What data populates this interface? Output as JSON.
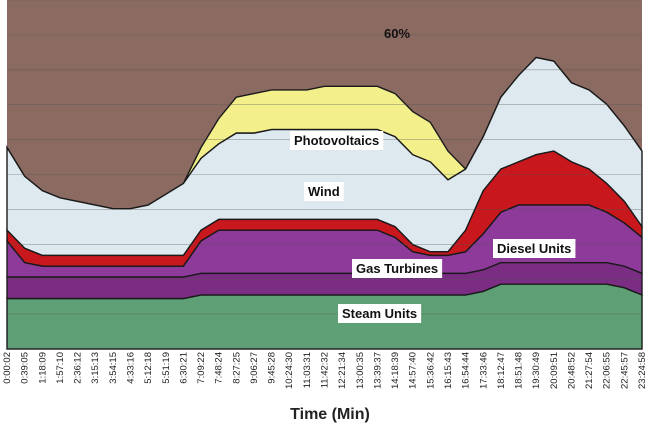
{
  "chart_data": {
    "type": "area",
    "title": "",
    "xlabel": "Time (Min)",
    "ylabel": "",
    "categories": [
      "0:00:02",
      "0:39:05",
      "1:18:09",
      "1:57:10",
      "2:36:12",
      "3:15:13",
      "3:54:15",
      "4:33:16",
      "5:12:18",
      "5:51:19",
      "6:30:21",
      "7:09:22",
      "7:48:24",
      "8:27:25",
      "9:06:27",
      "9:45:28",
      "10:24:30",
      "11:03:31",
      "11:42:32",
      "12:21:34",
      "13:00:35",
      "13:39:37",
      "14:18:39",
      "14:57:40",
      "15:36:42",
      "16:15:43",
      "16:54:44",
      "17:33:46",
      "18:12:47",
      "18:51:48",
      "19:30:49",
      "20:09:51",
      "20:48:52",
      "21:27:54",
      "22:06:55",
      "22:45:57",
      "23:24:58"
    ],
    "series": [
      {
        "name": "Steam Units",
        "color": "#5f9f76",
        "values": [
          14,
          14,
          14,
          14,
          14,
          14,
          14,
          14,
          14,
          14,
          14,
          15,
          15,
          15,
          15,
          15,
          15,
          15,
          15,
          15,
          15,
          15,
          15,
          15,
          15,
          15,
          15,
          16,
          18,
          18,
          18,
          18,
          18,
          18,
          18,
          17,
          15
        ]
      },
      {
        "name": "",
        "color": "#7a2d83",
        "values": [
          6,
          6,
          6,
          6,
          6,
          6,
          6,
          6,
          6,
          6,
          6,
          6,
          6,
          6,
          6,
          6,
          6,
          6,
          6,
          6,
          6,
          6,
          6,
          6,
          6,
          6,
          6,
          6,
          6,
          6,
          6,
          6,
          6,
          6,
          6,
          6,
          6
        ]
      },
      {
        "name": "",
        "color": "#8e3a9a",
        "values": [
          10,
          4,
          3,
          3,
          3,
          3,
          3,
          3,
          3,
          3,
          3,
          9,
          12,
          12,
          12,
          12,
          12,
          12,
          12,
          12,
          12,
          12,
          10,
          6,
          5,
          5,
          6,
          10,
          14,
          16,
          16,
          16,
          16,
          16,
          14,
          12,
          10
        ]
      },
      {
        "name": "Gas Turbines",
        "color": "#9a2e92",
        "values": [
          0,
          0,
          0,
          0,
          0,
          0,
          0,
          0,
          0,
          0,
          0,
          0,
          0,
          0,
          0,
          0,
          0,
          0,
          0,
          0,
          0,
          0,
          0,
          0,
          0,
          0,
          0,
          0,
          0,
          0,
          0,
          0,
          0,
          0,
          0,
          0,
          0
        ]
      },
      {
        "name": "Diesel Units",
        "color": "#c8181e",
        "values": [
          3,
          4,
          3,
          3,
          3,
          3,
          3,
          3,
          3,
          3,
          3,
          3,
          3,
          3,
          3,
          3,
          3,
          3,
          3,
          3,
          3,
          3,
          3,
          2,
          1,
          1,
          6,
          12,
          12,
          12,
          14,
          15,
          12,
          10,
          8,
          6,
          3
        ]
      },
      {
        "name": "Wind",
        "color": "#dde9ee",
        "values": [
          23,
          20,
          18,
          16,
          15,
          14,
          13,
          13,
          14,
          17,
          20,
          20,
          21,
          24,
          24,
          25,
          25,
          25,
          25,
          25,
          25,
          25,
          25,
          25,
          25,
          20,
          17,
          15,
          20,
          24,
          27,
          25,
          22,
          22,
          22,
          21,
          21
        ]
      },
      {
        "name": "Photovoltaics",
        "color": "#f3f08c",
        "values": [
          0,
          0,
          0,
          0,
          0,
          0,
          0,
          0,
          0,
          0,
          0,
          3,
          7,
          10,
          11,
          11,
          11,
          11,
          12,
          12,
          12,
          12,
          12,
          12,
          11,
          8,
          0,
          0,
          0,
          0,
          0,
          0,
          0,
          0,
          0,
          0,
          0
        ]
      },
      {
        "name": "",
        "color": "#8b6a62",
        "values": [
          62,
          63,
          64,
          64,
          64,
          64,
          63,
          62,
          62,
          62,
          61,
          58,
          70,
          75,
          77,
          79,
          80,
          80,
          81,
          81,
          81,
          82,
          84,
          85,
          82,
          76,
          62,
          56,
          53,
          54,
          55,
          56,
          57,
          57,
          57,
          56,
          55
        ]
      }
    ],
    "annotations": [
      "60%"
    ],
    "ylim": [
      0,
      97
    ],
    "grid": true,
    "legend": "none"
  }
}
